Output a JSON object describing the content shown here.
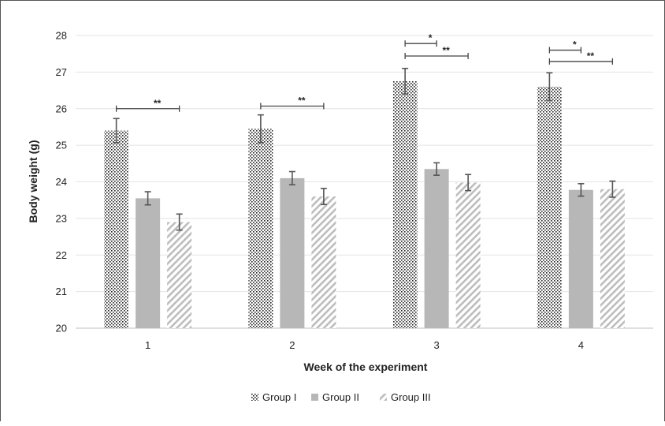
{
  "chart_data": {
    "type": "bar",
    "title": "",
    "xlabel": "Week of the experiment",
    "ylabel": "Body weight (g)",
    "ylim": [
      20,
      28
    ],
    "yticks": [
      "20",
      "21",
      "22",
      "23",
      "24",
      "25",
      "26",
      "27",
      "28"
    ],
    "categories": [
      "1",
      "2",
      "3",
      "4"
    ],
    "grid": true,
    "legend_position": "bottom",
    "series": [
      {
        "name": "Group I",
        "pattern": "dots",
        "color": "#222222",
        "values": [
          25.4,
          25.45,
          26.75,
          26.6
        ],
        "errors": [
          0.33,
          0.38,
          0.35,
          0.38
        ]
      },
      {
        "name": "Group II",
        "pattern": "solid",
        "color": "#b7b7b7",
        "values": [
          23.55,
          24.1,
          24.35,
          23.78
        ],
        "errors": [
          0.18,
          0.18,
          0.17,
          0.17
        ]
      },
      {
        "name": "Group III",
        "pattern": "diagonal",
        "color": "#bdbdbd",
        "values": [
          22.9,
          23.6,
          23.98,
          23.8
        ],
        "errors": [
          0.22,
          0.22,
          0.22,
          0.22
        ]
      }
    ],
    "significance": [
      {
        "category": 0,
        "from": "Group I",
        "to": "Group III",
        "label": "**",
        "y": 26.0
      },
      {
        "category": 1,
        "from": "Group I",
        "to": "Group III",
        "label": "**",
        "y": 26.07
      },
      {
        "category": 2,
        "from": "Group I",
        "to": "Group II",
        "label": "*",
        "y": 27.78
      },
      {
        "category": 2,
        "from": "Group I",
        "to": "Group III",
        "label": "**",
        "y": 27.44
      },
      {
        "category": 3,
        "from": "Group I",
        "to": "Group II",
        "label": "*",
        "y": 27.6
      },
      {
        "category": 3,
        "from": "Group I",
        "to": "Group III",
        "label": "**",
        "y": 27.29
      }
    ]
  }
}
